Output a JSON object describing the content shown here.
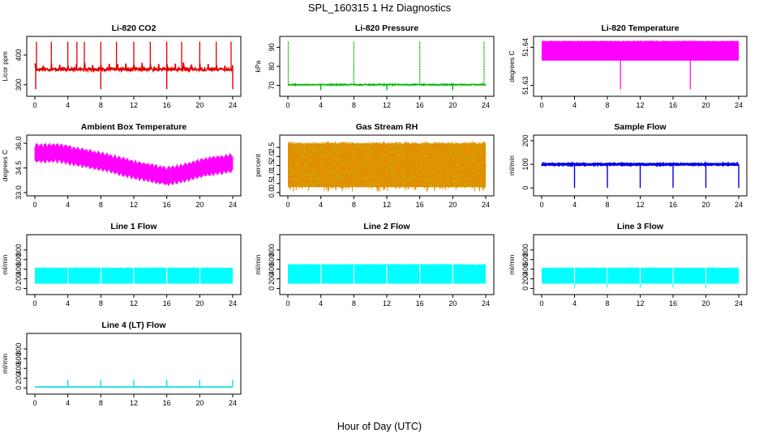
{
  "figure": {
    "title": "SPL_160315  1 Hz Diagnostics",
    "xlabel": "Hour of Day (UTC)"
  },
  "chart_data": [
    {
      "type": "line",
      "title": "Li-820 CO2",
      "ylabel": "Licor ppm",
      "color": "#e00000",
      "xlim": [
        0,
        24
      ],
      "ylim": [
        272,
        452
      ],
      "yticks": [
        300,
        400
      ],
      "ytick_labels": [
        "300",
        "400"
      ],
      "xticks": [
        0,
        4,
        8,
        12,
        16,
        20,
        24
      ],
      "xtick_labels": [
        "0",
        "4",
        "8",
        "12",
        "16",
        "20",
        "24"
      ],
      "signal": {
        "kind": "spiky",
        "base": 352,
        "noise": 5,
        "period_h": 1,
        "spike_hours": [
          0.2,
          2.0,
          4.0,
          5.1,
          6.0,
          8.0,
          9.9,
          12.0,
          14.0,
          16.0,
          17.8,
          20.0,
          22.0,
          23.8
        ],
        "spike_top": 445,
        "dip_hours": [
          0.1,
          8.0,
          16.0,
          24.0
        ],
        "dip_bottom": 285
      }
    },
    {
      "type": "line",
      "title": "Li-820 Pressure",
      "ylabel": "kPa",
      "color": "#00bb00",
      "xlim": [
        0,
        24
      ],
      "ylim": [
        66,
        94
      ],
      "yticks": [
        70,
        80,
        90
      ],
      "ytick_labels": [
        "70",
        "80",
        "90"
      ],
      "xticks": [
        0,
        4,
        8,
        12,
        16,
        20,
        24
      ],
      "xtick_labels": [
        "0",
        "4",
        "8",
        "12",
        "16",
        "20",
        "24"
      ],
      "signal": {
        "kind": "step",
        "base": 70.4,
        "noise": 0.25,
        "spike_hours": [
          0.05,
          8.0,
          16.0,
          23.8
        ],
        "spike_top": 93,
        "dip_hours": [
          4.0,
          12.0,
          20.0
        ],
        "dip_bottom": 67.5
      }
    },
    {
      "type": "area",
      "title": "Li-820 Temperature",
      "ylabel": "degrees C",
      "color": "#ff00ff",
      "xlim": [
        0,
        24
      ],
      "ylim": [
        51.628,
        51.642
      ],
      "yticks": [
        51.63,
        51.64
      ],
      "ytick_labels": [
        "51.63",
        "51.64"
      ],
      "xticks": [
        0,
        4,
        8,
        12,
        16,
        20,
        24
      ],
      "xtick_labels": [
        "0",
        "4",
        "8",
        "12",
        "16",
        "20",
        "24"
      ],
      "signal": {
        "kind": "band",
        "low": 51.6365,
        "high": 51.6415,
        "dip_hours": [
          9.6,
          18.1
        ],
        "dip_bottom": 51.629
      }
    },
    {
      "type": "area",
      "title": "Ambient Box Temperature",
      "ylabel": "degrees C",
      "color": "#ff00ff",
      "xlim": [
        0,
        24
      ],
      "ylim": [
        33.0,
        36.3
      ],
      "yticks": [
        33.0,
        34.5,
        36.0
      ],
      "ytick_labels": [
        "33.0",
        "34.5",
        "36.0"
      ],
      "xticks": [
        0,
        4,
        8,
        12,
        16,
        20,
        24
      ],
      "xtick_labels": [
        "0",
        "4",
        "8",
        "12",
        "16",
        "20",
        "24"
      ],
      "signal": {
        "kind": "oscillating_trend",
        "hours": [
          0,
          3,
          6,
          9,
          12,
          16,
          18,
          21,
          24
        ],
        "center": [
          35.4,
          35.4,
          35.1,
          34.8,
          34.4,
          34.0,
          34.2,
          34.6,
          34.8
        ],
        "amplitude": 0.55
      }
    },
    {
      "type": "area",
      "title": "Gas Stream RH",
      "ylabel": "percent",
      "color": "#e09000",
      "xlim": [
        0,
        24
      ],
      "ylim": [
        0,
        3
      ],
      "yticks": [
        0.0,
        0.5,
        1.0,
        1.5,
        2.0,
        2.5
      ],
      "ytick_labels": [
        "0.0",
        "0.5",
        "1.0",
        "1.5",
        "2.0",
        "2.5"
      ],
      "xticks": [
        0,
        4,
        8,
        12,
        16,
        20,
        24
      ],
      "xtick_labels": [
        "0",
        "4",
        "8",
        "12",
        "16",
        "20",
        "24"
      ],
      "signal": {
        "kind": "band",
        "low": 0.3,
        "high": 2.7,
        "dip_hours": [],
        "dip_bottom": 0
      }
    },
    {
      "type": "line",
      "title": "Sample Flow",
      "ylabel": "ml/min",
      "color": "#0000ee",
      "xlim": [
        0,
        24
      ],
      "ylim": [
        -20,
        210
      ],
      "yticks": [
        0,
        100,
        200
      ],
      "ytick_labels": [
        "0",
        "100",
        "200"
      ],
      "xticks": [
        0,
        4,
        8,
        12,
        16,
        20,
        24
      ],
      "xtick_labels": [
        "0",
        "4",
        "8",
        "12",
        "16",
        "20",
        "24"
      ],
      "signal": {
        "kind": "step",
        "base": 100,
        "noise": 2,
        "spike_hours": [],
        "spike_top": 100,
        "dip_hours": [
          4.0,
          8.0,
          12.0,
          16.0,
          20.0,
          24.0
        ],
        "dip_bottom": 0
      }
    },
    {
      "type": "area",
      "title": "Line 1 Flow",
      "ylabel": "ml/min",
      "color": "#00ffff",
      "xlim": [
        0,
        24
      ],
      "ylim": [
        -60,
        1050
      ],
      "yticks": [
        0,
        200,
        400,
        600,
        800
      ],
      "ytick_labels": [
        "0",
        "200",
        "400",
        "600",
        "800"
      ],
      "xticks": [
        0,
        4,
        8,
        12,
        16,
        20,
        24
      ],
      "xtick_labels": [
        "0",
        "4",
        "8",
        "12",
        "16",
        "20",
        "24"
      ],
      "signal": {
        "kind": "band",
        "low": 100,
        "high": 420,
        "dip_hours": [
          4.0,
          8.0,
          12.0,
          16.0,
          20.0
        ],
        "dip_bottom": 100
      }
    },
    {
      "type": "area",
      "title": "Line 2 Flow",
      "ylabel": "ml/min",
      "color": "#00ffff",
      "xlim": [
        0,
        24
      ],
      "ylim": [
        -60,
        1050
      ],
      "yticks": [
        0,
        200,
        400,
        600,
        800
      ],
      "ytick_labels": [
        "0",
        "200",
        "400",
        "600",
        "800"
      ],
      "xticks": [
        0,
        4,
        8,
        12,
        16,
        20,
        24
      ],
      "xtick_labels": [
        "0",
        "4",
        "8",
        "12",
        "16",
        "20",
        "24"
      ],
      "signal": {
        "kind": "band",
        "low": 100,
        "high": 490,
        "dip_hours": [
          4.0,
          8.0,
          12.0,
          16.0,
          20.0
        ],
        "dip_bottom": 100
      }
    },
    {
      "type": "area",
      "title": "Line 3 Flow",
      "ylabel": "ml/min",
      "color": "#00ffff",
      "xlim": [
        0,
        24
      ],
      "ylim": [
        -60,
        1050
      ],
      "yticks": [
        0,
        200,
        400,
        600,
        800
      ],
      "ytick_labels": [
        "0",
        "200",
        "400",
        "600",
        "800"
      ],
      "xticks": [
        0,
        4,
        8,
        12,
        16,
        20,
        24
      ],
      "xtick_labels": [
        "0",
        "4",
        "8",
        "12",
        "16",
        "20",
        "24"
      ],
      "signal": {
        "kind": "band",
        "low": 100,
        "high": 420,
        "dip_hours": [
          4.0,
          8.0,
          12.0,
          16.0,
          20.0
        ],
        "dip_bottom": 20
      }
    },
    {
      "type": "line",
      "title": "Line 4 (LT) Flow",
      "ylabel": "ml/min",
      "color": "#00e0e0",
      "xlim": [
        0,
        24
      ],
      "ylim": [
        -60,
        1050
      ],
      "yticks": [
        0,
        200,
        400,
        600,
        800
      ],
      "ytick_labels": [
        "0",
        "200",
        "400",
        "600",
        "800"
      ],
      "xticks": [
        0,
        4,
        8,
        12,
        16,
        20,
        24
      ],
      "xtick_labels": [
        "0",
        "4",
        "8",
        "12",
        "16",
        "20",
        "24"
      ],
      "signal": {
        "kind": "step",
        "base": 20,
        "noise": 1,
        "spike_hours": [
          4.0,
          8.0,
          12.0,
          16.0,
          20.0,
          24.0
        ],
        "spike_top": 170,
        "dip_hours": [],
        "dip_bottom": 0
      }
    }
  ]
}
